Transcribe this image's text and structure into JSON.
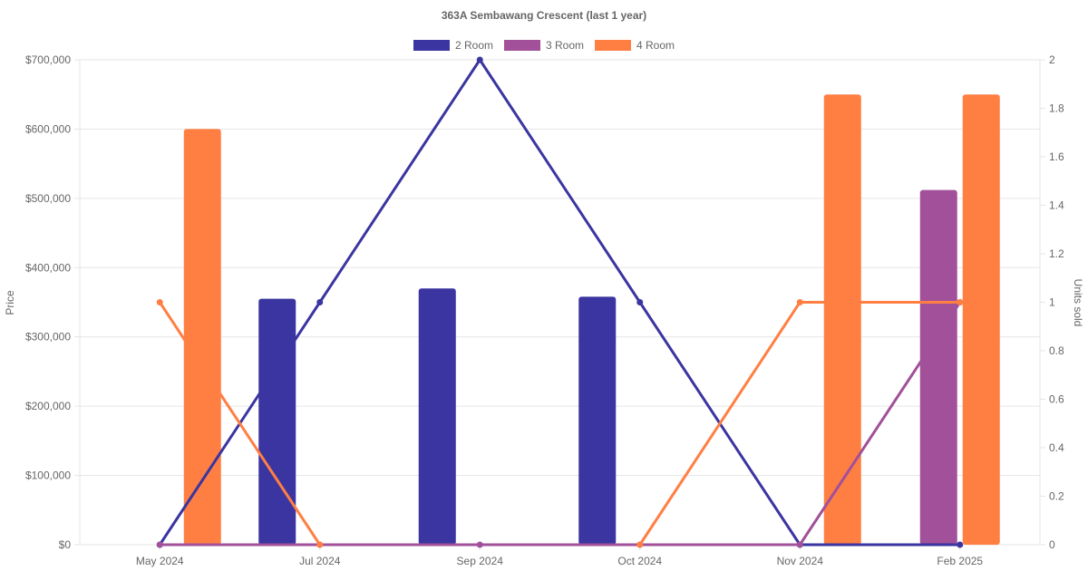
{
  "chart_data": {
    "type": "bar",
    "title": "363A Sembawang Crescent (last 1 year)",
    "categories": [
      "May 2024",
      "Jul 2024",
      "Sep 2024",
      "Oct 2024",
      "Nov 2024",
      "Feb 2025"
    ],
    "y_left": {
      "label": "Price",
      "ylim": [
        0,
        700000
      ],
      "ticks": [
        "$0",
        "$100,000",
        "$200,000",
        "$300,000",
        "$400,000",
        "$500,000",
        "$600,000",
        "$700,000"
      ]
    },
    "y_right": {
      "label": "Units sold",
      "ylim": [
        0,
        2
      ],
      "ticks": [
        "0",
        "0.2",
        "0.4",
        "0.6",
        "0.8",
        "1",
        "1.2",
        "1.4",
        "1.6",
        "1.8",
        "2"
      ]
    },
    "legend_position": "top-center",
    "grid": true,
    "series": [
      {
        "name": "2 Room",
        "color": "#3a35a0",
        "price": [
          null,
          355000,
          370000,
          358000,
          null,
          null
        ],
        "units_sold": [
          0,
          1,
          2,
          1,
          0,
          0
        ]
      },
      {
        "name": "3 Room",
        "color": "#a15099",
        "price": [
          null,
          null,
          null,
          null,
          null,
          512000
        ],
        "units_sold": [
          0,
          0,
          0,
          0,
          0,
          1
        ]
      },
      {
        "name": "4 Room",
        "color": "#ff7f43",
        "price": [
          600000,
          null,
          null,
          null,
          650000,
          650000
        ],
        "units_sold": [
          1,
          0,
          null,
          0,
          1,
          1
        ]
      }
    ]
  }
}
